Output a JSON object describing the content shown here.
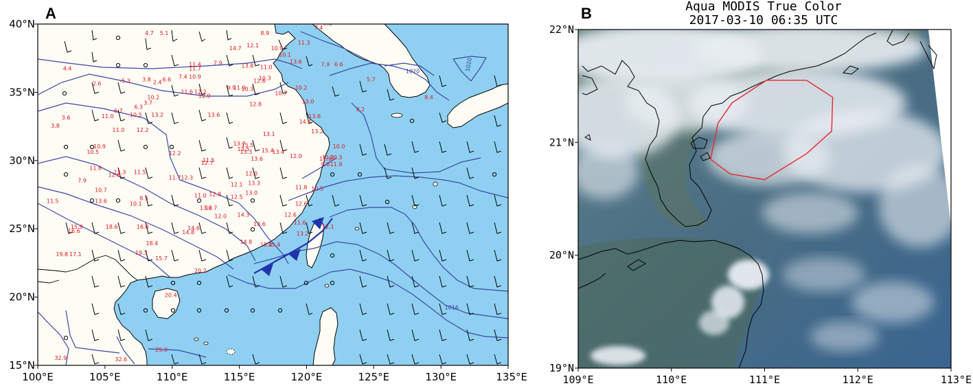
{
  "panel_a": {
    "letter": "A",
    "lon_range": [
      100,
      135
    ],
    "lat_range": [
      15,
      40
    ],
    "lon_ticks": [
      "100°E",
      "105°E",
      "110°E",
      "115°E",
      "120°E",
      "125°E",
      "130°E",
      "135°E"
    ],
    "lat_ticks": [
      "15°N",
      "20°N",
      "25°N",
      "30°N",
      "35°N",
      "40°N"
    ],
    "colors": {
      "land": "#fdfcf5",
      "sea": "#8fd0f2",
      "isobar": "#3a46a6",
      "temperature": "#e0141e",
      "front": "#2233aa"
    },
    "isobar_labels": [
      {
        "text": "1020",
        "lon": 127.9,
        "lat": 36.4
      },
      {
        "text": "1020",
        "lon": 132.2,
        "lat": 37.0
      },
      {
        "text": "1016",
        "lon": 130.8,
        "lat": 19.1
      }
    ],
    "temperatures": [
      {
        "t": "4.7",
        "lon": 108.3,
        "lat": 39.2
      },
      {
        "t": "5.1",
        "lon": 109.4,
        "lat": 39.2
      },
      {
        "t": "8.9",
        "lon": 116.9,
        "lat": 39.2
      },
      {
        "t": "7.4",
        "lon": 120.9,
        "lat": 39.6
      },
      {
        "t": "7.5",
        "lon": 121.6,
        "lat": 39.9
      },
      {
        "t": "12.1",
        "lon": 116.0,
        "lat": 38.3
      },
      {
        "t": "14.7",
        "lon": 114.7,
        "lat": 38.1
      },
      {
        "t": "10.9",
        "lon": 117.8,
        "lat": 38.1
      },
      {
        "t": "11.3",
        "lon": 119.8,
        "lat": 38.5
      },
      {
        "t": "10.1",
        "lon": 118.4,
        "lat": 37.6
      },
      {
        "t": "13.6",
        "lon": 119.2,
        "lat": 37.1
      },
      {
        "t": "11.4",
        "lon": 111.7,
        "lat": 36.9
      },
      {
        "t": "7.9",
        "lon": 113.4,
        "lat": 37.0
      },
      {
        "t": "13.8",
        "lon": 115.6,
        "lat": 36.8
      },
      {
        "t": "11.0",
        "lon": 117.0,
        "lat": 36.7
      },
      {
        "t": "11.7",
        "lon": 111.7,
        "lat": 36.6
      },
      {
        "t": "7.9",
        "lon": 121.4,
        "lat": 36.9
      },
      {
        "t": "6.6",
        "lon": 122.4,
        "lat": 36.9
      },
      {
        "t": "4.4",
        "lon": 102.2,
        "lat": 36.6
      },
      {
        "t": "10.9",
        "lon": 111.7,
        "lat": 36.0
      },
      {
        "t": "7.4",
        "lon": 110.8,
        "lat": 36.0
      },
      {
        "t": "6.6",
        "lon": 109.6,
        "lat": 35.8
      },
      {
        "t": "-5.3",
        "lon": 106.5,
        "lat": 35.7
      },
      {
        "t": "3.8",
        "lon": 108.1,
        "lat": 35.8
      },
      {
        "t": "2.4",
        "lon": 108.9,
        "lat": 35.6
      },
      {
        "t": "2.6",
        "lon": 104.4,
        "lat": 35.5
      },
      {
        "t": "10.3",
        "lon": 116.9,
        "lat": 35.9
      },
      {
        "t": "12.6",
        "lon": 116.5,
        "lat": 35.7
      },
      {
        "t": "9.9",
        "lon": 114.4,
        "lat": 35.2
      },
      {
        "t": "11.0",
        "lon": 115.0,
        "lat": 35.2
      },
      {
        "t": "10.3",
        "lon": 115.6,
        "lat": 35.1
      },
      {
        "t": "10.2",
        "lon": 119.6,
        "lat": 35.2
      },
      {
        "t": "5.7",
        "lon": 124.8,
        "lat": 35.8
      },
      {
        "t": "11.6",
        "lon": 111.1,
        "lat": 34.9
      },
      {
        "t": "12.2",
        "lon": 112.1,
        "lat": 34.9
      },
      {
        "t": "12.9",
        "lon": 112.4,
        "lat": 34.6
      },
      {
        "t": "10.7",
        "lon": 118.1,
        "lat": 34.8
      },
      {
        "t": "10.2",
        "lon": 108.6,
        "lat": 34.5
      },
      {
        "t": "3.7",
        "lon": 108.2,
        "lat": 34.1
      },
      {
        "t": "12.8",
        "lon": 116.2,
        "lat": 34.0
      },
      {
        "t": "13.0",
        "lon": 120.1,
        "lat": 34.2
      },
      {
        "t": "6.3",
        "lon": 107.5,
        "lat": 33.8
      },
      {
        "t": "9.2",
        "lon": 124.0,
        "lat": 33.6
      },
      {
        "t": "8.4",
        "lon": 129.1,
        "lat": 34.5
      },
      {
        "t": "6.7",
        "lon": 106.0,
        "lat": 33.5
      },
      {
        "t": "10.5",
        "lon": 107.3,
        "lat": 33.2
      },
      {
        "t": "13.2",
        "lon": 108.9,
        "lat": 33.2
      },
      {
        "t": "11.0",
        "lon": 105.2,
        "lat": 33.1
      },
      {
        "t": "13.6",
        "lon": 113.1,
        "lat": 33.2
      },
      {
        "t": "14.4",
        "lon": 119.9,
        "lat": 32.7
      },
      {
        "t": "13.6",
        "lon": 120.6,
        "lat": 33.1
      },
      {
        "t": "3.6",
        "lon": 102.1,
        "lat": 33.0
      },
      {
        "t": "3.8",
        "lon": 101.3,
        "lat": 32.4
      },
      {
        "t": "11.0",
        "lon": 106.0,
        "lat": 32.1
      },
      {
        "t": "12.2",
        "lon": 107.8,
        "lat": 32.1
      },
      {
        "t": "13.1",
        "lon": 117.2,
        "lat": 31.8
      },
      {
        "t": "13.2",
        "lon": 120.8,
        "lat": 32.0
      },
      {
        "t": "10.9",
        "lon": 104.6,
        "lat": 30.9
      },
      {
        "t": "15.5",
        "lon": 115.6,
        "lat": 31.0
      },
      {
        "t": "13.7",
        "lon": 115.0,
        "lat": 31.1
      },
      {
        "t": "13.5",
        "lon": 115.3,
        "lat": 30.7
      },
      {
        "t": "13.3",
        "lon": 115.5,
        "lat": 30.5
      },
      {
        "t": "15.4",
        "lon": 117.1,
        "lat": 30.6
      },
      {
        "t": "13.4",
        "lon": 117.9,
        "lat": 30.5
      },
      {
        "t": "10.0",
        "lon": 122.4,
        "lat": 30.9
      },
      {
        "t": "10.5",
        "lon": 104.1,
        "lat": 30.5
      },
      {
        "t": "12.2",
        "lon": 110.2,
        "lat": 30.4
      },
      {
        "t": "13.6",
        "lon": 116.3,
        "lat": 30.0
      },
      {
        "t": "12.0",
        "lon": 119.2,
        "lat": 30.2
      },
      {
        "t": "11.5",
        "lon": 112.7,
        "lat": 29.9
      },
      {
        "t": "12.7",
        "lon": 112.6,
        "lat": 29.7
      },
      {
        "t": "11.2",
        "lon": 121.6,
        "lat": 30.1
      },
      {
        "t": "11.9",
        "lon": 121.4,
        "lat": 30.0
      },
      {
        "t": "10.3",
        "lon": 122.2,
        "lat": 30.1
      },
      {
        "t": "9.6",
        "lon": 121.4,
        "lat": 29.6
      },
      {
        "t": "11.9",
        "lon": 122.2,
        "lat": 29.6
      },
      {
        "t": "11.6",
        "lon": 104.3,
        "lat": 29.3
      },
      {
        "t": "13.3",
        "lon": 106.1,
        "lat": 29.0
      },
      {
        "t": "12.6",
        "lon": 105.7,
        "lat": 28.8
      },
      {
        "t": "11.5",
        "lon": 107.6,
        "lat": 29.0
      },
      {
        "t": "11.7",
        "lon": 110.2,
        "lat": 28.6
      },
      {
        "t": "12.3",
        "lon": 111.1,
        "lat": 28.6
      },
      {
        "t": "12.0",
        "lon": 115.9,
        "lat": 28.9
      },
      {
        "t": "7.9",
        "lon": 103.3,
        "lat": 28.4
      },
      {
        "t": "12.1",
        "lon": 114.8,
        "lat": 28.1
      },
      {
        "t": "13.3",
        "lon": 116.1,
        "lat": 28.2
      },
      {
        "t": "10.7",
        "lon": 104.7,
        "lat": 27.7
      },
      {
        "t": "11.8",
        "lon": 119.6,
        "lat": 27.9
      },
      {
        "t": "10.5",
        "lon": 120.8,
        "lat": 27.8
      },
      {
        "t": "11.0",
        "lon": 112.1,
        "lat": 27.3
      },
      {
        "t": "12.8",
        "lon": 113.2,
        "lat": 27.4
      },
      {
        "t": "12.5",
        "lon": 114.8,
        "lat": 27.2
      },
      {
        "t": "13.0",
        "lon": 115.9,
        "lat": 27.5
      },
      {
        "t": "13.6",
        "lon": 104.7,
        "lat": 26.9
      },
      {
        "t": "8.5",
        "lon": 107.9,
        "lat": 27.1
      },
      {
        "t": "10.1",
        "lon": 107.3,
        "lat": 26.7
      },
      {
        "t": "11.5",
        "lon": 101.1,
        "lat": 26.9
      },
      {
        "t": "12.6",
        "lon": 119.6,
        "lat": 26.7
      },
      {
        "t": "13.6",
        "lon": 112.5,
        "lat": 26.4
      },
      {
        "t": "12.7",
        "lon": 112.9,
        "lat": 26.4
      },
      {
        "t": "12.0",
        "lon": 113.6,
        "lat": 25.8
      },
      {
        "t": "14.3",
        "lon": 115.3,
        "lat": 25.9
      },
      {
        "t": "12.6",
        "lon": 118.8,
        "lat": 25.9
      },
      {
        "t": "11.6",
        "lon": 119.5,
        "lat": 25.3
      },
      {
        "t": "13.6",
        "lon": 116.5,
        "lat": 25.2
      },
      {
        "t": "12.1",
        "lon": 121.6,
        "lat": 25.0
      },
      {
        "t": "15.9",
        "lon": 102.9,
        "lat": 25.0
      },
      {
        "t": "16.6",
        "lon": 102.7,
        "lat": 24.7
      },
      {
        "t": "18.6",
        "lon": 105.5,
        "lat": 25.0
      },
      {
        "t": "16.0",
        "lon": 107.8,
        "lat": 25.0
      },
      {
        "t": "14.6",
        "lon": 111.6,
        "lat": 24.9
      },
      {
        "t": "14.8",
        "lon": 111.2,
        "lat": 24.6
      },
      {
        "t": "13.2",
        "lon": 119.7,
        "lat": 24.5
      },
      {
        "t": "14.8",
        "lon": 115.5,
        "lat": 23.9
      },
      {
        "t": "15.4",
        "lon": 117.0,
        "lat": 23.7
      },
      {
        "t": "15.4",
        "lon": 117.6,
        "lat": 23.7
      },
      {
        "t": "18.4",
        "lon": 108.5,
        "lat": 23.8
      },
      {
        "t": "19.3",
        "lon": 107.7,
        "lat": 23.1
      },
      {
        "t": "19.8",
        "lon": 101.8,
        "lat": 23.0
      },
      {
        "t": "17.1",
        "lon": 102.8,
        "lat": 23.0
      },
      {
        "t": "15.7",
        "lon": 109.2,
        "lat": 22.7
      },
      {
        "t": "20.2",
        "lon": 112.1,
        "lat": 21.8
      },
      {
        "t": "20.4",
        "lon": 109.9,
        "lat": 20.0
      },
      {
        "t": "25.0",
        "lon": 109.2,
        "lat": 16.0
      },
      {
        "t": "32.9",
        "lon": 101.7,
        "lat": 15.4
      },
      {
        "t": "32.6",
        "lon": 106.2,
        "lat": 15.3
      }
    ]
  },
  "panel_b": {
    "letter": "B",
    "title_line1": "Aqua MODIS True Color",
    "title_line2": "2017-03-10 06:35 UTC",
    "lon_range": [
      109,
      113
    ],
    "lat_range": [
      19,
      22
    ],
    "lon_ticks": [
      "109°E",
      "110°E",
      "111°E",
      "112°E",
      "113°E"
    ],
    "lat_ticks": [
      "19°N",
      "20°N",
      "21°N",
      "22°N"
    ],
    "colors": {
      "sea": "#4f7185",
      "cloud": "#e8edf2",
      "outline": "#e8262a",
      "coast": "#000000"
    },
    "highlight_polygon_lonlat": [
      [
        111.02,
        21.55
      ],
      [
        111.45,
        21.55
      ],
      [
        111.73,
        21.4
      ],
      [
        111.72,
        21.1
      ],
      [
        111.45,
        20.9
      ],
      [
        111.0,
        20.67
      ],
      [
        110.63,
        20.72
      ],
      [
        110.42,
        20.85
      ],
      [
        110.5,
        21.17
      ],
      [
        110.65,
        21.35
      ]
    ]
  }
}
